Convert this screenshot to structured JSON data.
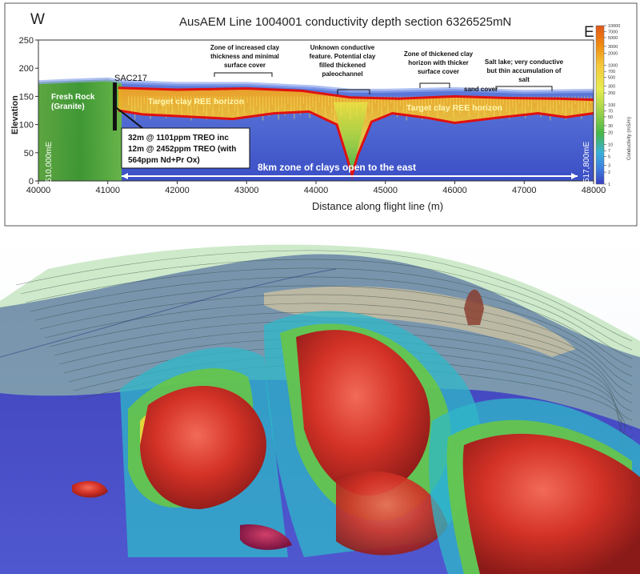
{
  "chart_data": [
    {
      "type": "heatmap",
      "title": "AusAEM Line 1004001 conductivity depth section 6326525mN",
      "west_label": "W",
      "east_label": "E",
      "xlabel": "Distance along flight line (m)",
      "ylabel": "Elevation",
      "xlim": [
        40000,
        48000
      ],
      "ylim": [
        0,
        250
      ],
      "x_ticks": [
        "40000",
        "41000",
        "42000",
        "43000",
        "44000",
        "45000",
        "46000",
        "47000",
        "48000"
      ],
      "y_ticks": [
        "0",
        "50",
        "100",
        "150",
        "200",
        "250"
      ],
      "colorbar": {
        "label": "Conductivity (mS/m)",
        "ticks": [
          "10000",
          "7000",
          "5000",
          "3000",
          "2000",
          "1000",
          "700",
          "500",
          "300",
          "200",
          "100",
          "70",
          "50",
          "30",
          "20",
          "10",
          "7",
          "5",
          "3",
          "2",
          "1"
        ]
      },
      "surface_elevation": [
        {
          "x": 40000,
          "y": 175
        },
        {
          "x": 40500,
          "y": 178
        },
        {
          "x": 41000,
          "y": 180
        },
        {
          "x": 41200,
          "y": 176
        },
        {
          "x": 42000,
          "y": 172
        },
        {
          "x": 43000,
          "y": 172
        },
        {
          "x": 44000,
          "y": 166
        },
        {
          "x": 44500,
          "y": 160
        },
        {
          "x": 45000,
          "y": 160
        },
        {
          "x": 46000,
          "y": 163
        },
        {
          "x": 47000,
          "y": 158
        },
        {
          "x": 48000,
          "y": 160
        }
      ],
      "clay_top": [
        {
          "x": 41150,
          "y": 165
        },
        {
          "x": 42000,
          "y": 162
        },
        {
          "x": 43000,
          "y": 164
        },
        {
          "x": 43800,
          "y": 160
        },
        {
          "x": 44500,
          "y": 148
        },
        {
          "x": 45200,
          "y": 146
        },
        {
          "x": 46000,
          "y": 150
        },
        {
          "x": 46800,
          "y": 147
        },
        {
          "x": 47500,
          "y": 146
        },
        {
          "x": 48000,
          "y": 144
        }
      ],
      "clay_base": [
        {
          "x": 41150,
          "y": 125
        },
        {
          "x": 41500,
          "y": 118
        },
        {
          "x": 42000,
          "y": 115
        },
        {
          "x": 42800,
          "y": 110
        },
        {
          "x": 43400,
          "y": 120
        },
        {
          "x": 43900,
          "y": 123
        },
        {
          "x": 44300,
          "y": 100
        },
        {
          "x": 44450,
          "y": 40
        },
        {
          "x": 44520,
          "y": 10
        },
        {
          "x": 44600,
          "y": 45
        },
        {
          "x": 44800,
          "y": 105
        },
        {
          "x": 45100,
          "y": 120
        },
        {
          "x": 45600,
          "y": 112
        },
        {
          "x": 46000,
          "y": 103
        },
        {
          "x": 46600,
          "y": 112
        },
        {
          "x": 47200,
          "y": 120
        },
        {
          "x": 47600,
          "y": 113
        },
        {
          "x": 48000,
          "y": 120
        }
      ],
      "annotations": {
        "drillhole": "SAC217",
        "fresh_rock": [
          "Fresh Rock",
          "(Granite)"
        ],
        "target_left": "Target clay REE horizon",
        "target_right": "Target clay REE horizon",
        "zone_increased": [
          "Zone of increased clay",
          "thickness and minimal",
          "surface cover"
        ],
        "unknown_feature": [
          "Unknown conductive",
          "feature. Potential clay",
          "filled thickened",
          "paleochannel"
        ],
        "zone_thickened": [
          "Zone of thickened clay",
          "horizon with thicker",
          "surface cover"
        ],
        "sand_cover": "sand cover",
        "salt_lake": [
          "Salt lake; very conductive",
          "but thin accumulation of",
          "salt"
        ],
        "intercept": [
          "32m @ 1101ppm TREO inc",
          "12m @ 2452ppm TREO (with",
          "564ppm Nd+Pr Ox)"
        ],
        "open_zone": "8km zone of clays open to the east",
        "left_easting": "510,000mE",
        "right_easting": "517,800mE"
      }
    }
  ],
  "colors": {
    "deep_blue": "#3d4fc4",
    "granite_green": "#4d9a2a",
    "clay_orange": "#f08a10",
    "clay_yellow": "#f2d030",
    "horizon_red": "#e01010",
    "annotation_green": "#ffffff"
  }
}
